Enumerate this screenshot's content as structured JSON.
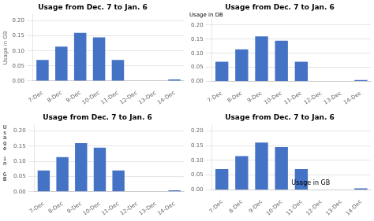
{
  "chart_data": [
    {
      "type": "bar",
      "title": "Usage from Dec. 7 to Jan. 6",
      "categories": [
        "7-Dec",
        "8-Dec",
        "9-Dec",
        "10-Dec",
        "11-Dec",
        "12-Dec",
        "13-Dec",
        "14-Dec"
      ],
      "values": [
        0.07,
        0.114,
        0.16,
        0.145,
        0.07,
        0.0,
        0.0,
        0.005
      ],
      "color": "#4472C4",
      "ylim": [
        0,
        0.22
      ],
      "yticks": [
        {
          "value": 0,
          "label": "0.00"
        },
        0.05,
        {
          "value": 0.1,
          "label": "0.10"
        },
        0.15,
        {
          "value": 0.2,
          "label": "0.20"
        }
      ],
      "grid": true,
      "ylabel": "Usage in GB"
    },
    {
      "type": "bar",
      "title": "Usage from Dec. 7 to Jan. 6",
      "categories": [
        "7-Dec",
        "8-Dec",
        "9-Dec",
        "10-Dec",
        "11-Dec",
        "12-Dec",
        "13-Dec",
        "14-Dec"
      ],
      "values": [
        0.07,
        0.114,
        0.16,
        0.145,
        0.07,
        0.0,
        0.0,
        0.005
      ],
      "color": "#4472C4",
      "ylim": [
        0,
        0.22
      ],
      "yticks": [
        {
          "value": 0,
          "label": "0.00"
        },
        0.05,
        {
          "value": 0.1,
          "label": "0.10"
        },
        0.15,
        {
          "value": 0.2,
          "label": "0.20"
        }
      ],
      "grid": true,
      "annotation": "Usage in DB"
    },
    {
      "type": "bar",
      "title": "Usage from Dec. 7 to Jan. 6",
      "categories": [
        "7-Dec",
        "8-Dec",
        "9-Dec",
        "10-Dec",
        "11-Dec",
        "12-Dec",
        "13-Dec",
        "14-Dec"
      ],
      "values": [
        0.07,
        0.114,
        0.16,
        0.145,
        0.07,
        0.0,
        0.0,
        0.005
      ],
      "color": "#4472C4",
      "ylim": [
        0,
        0.22
      ],
      "yticks": [
        {
          "value": 0,
          "label": "0.00"
        },
        0.05,
        {
          "value": 0.1,
          "label": "0.10"
        },
        0.15,
        {
          "value": 0.2,
          "label": "0.20"
        }
      ],
      "grid": true,
      "annotation": "U\ns\na\ng\ne\n \ni\nn\n \nG\nB"
    },
    {
      "type": "bar",
      "title": "Usage from Dec. 7 to Jan. 6",
      "categories": [
        "7-Dec",
        "8-Dec",
        "9-Dec",
        "10-Dec",
        "11-Dec",
        "12-Dec",
        "13-Dec",
        "14-Dec"
      ],
      "values": [
        0.07,
        0.114,
        0.16,
        0.145,
        0.07,
        0.0,
        0.0,
        0.005
      ],
      "color": "#4472C4",
      "ylim": [
        0,
        0.22
      ],
      "yticks": [
        {
          "value": 0,
          "label": "0.00"
        },
        0.05,
        {
          "value": 0.1,
          "label": "0.10"
        },
        0.15,
        {
          "value": 0.2,
          "label": "0.20"
        }
      ],
      "grid": true,
      "annotation": "Usage in GB"
    }
  ]
}
